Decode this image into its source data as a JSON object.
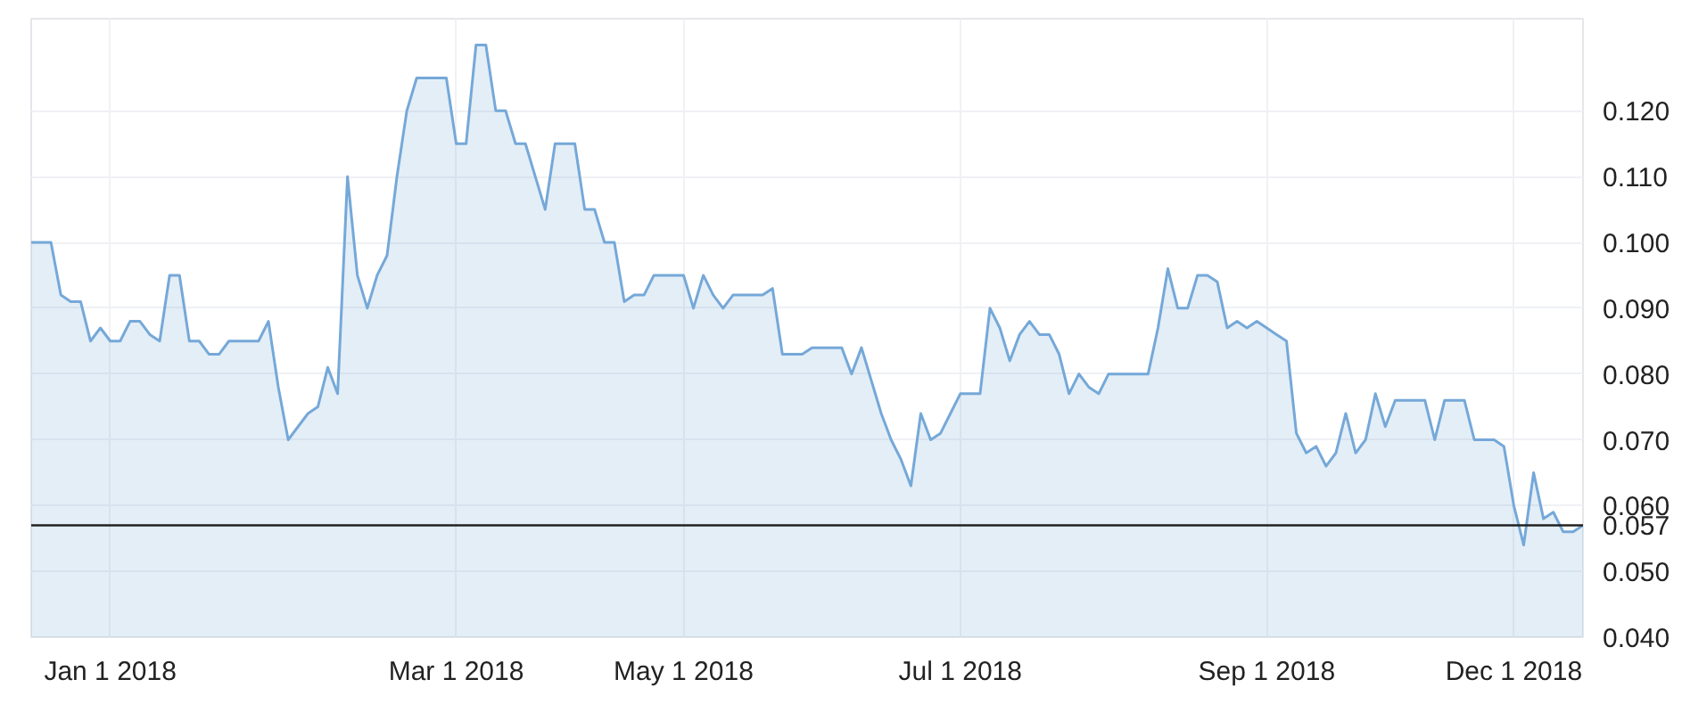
{
  "chart_data": {
    "type": "area",
    "categories": [
      null,
      null,
      null,
      null,
      null,
      null,
      null,
      null,
      "Jan 1 2018",
      null,
      null,
      null,
      null,
      null,
      null,
      null,
      null,
      null,
      null,
      null,
      null,
      null,
      null,
      null,
      null,
      null,
      null,
      null,
      null,
      null,
      null,
      null,
      null,
      null,
      null,
      null,
      null,
      null,
      null,
      null,
      null,
      null,
      null,
      "Mar 1 2018",
      null,
      null,
      null,
      null,
      null,
      null,
      null,
      null,
      null,
      null,
      null,
      null,
      null,
      null,
      null,
      null,
      null,
      null,
      null,
      null,
      null,
      null,
      "May 1 2018",
      null,
      null,
      null,
      null,
      null,
      null,
      null,
      null,
      null,
      null,
      null,
      null,
      null,
      null,
      null,
      null,
      null,
      null,
      null,
      null,
      null,
      null,
      null,
      null,
      null,
      null,
      null,
      "Jul 1 2018",
      null,
      null,
      null,
      null,
      null,
      null,
      null,
      null,
      null,
      null,
      null,
      null,
      null,
      null,
      null,
      null,
      null,
      null,
      null,
      null,
      null,
      null,
      null,
      null,
      null,
      null,
      null,
      null,
      null,
      null,
      "Sep 1 2018",
      null,
      null,
      null,
      null,
      null,
      null,
      null,
      null,
      null,
      null,
      null,
      null,
      null,
      null,
      null,
      null,
      null,
      null,
      null,
      null,
      null,
      null,
      null,
      null,
      "Dec 1 2018",
      null,
      null,
      null,
      null,
      null,
      null,
      null
    ],
    "series": [
      {
        "color": "#75a8d8",
        "values": [
          0.1,
          0.1,
          0.1,
          0.092,
          0.091,
          0.091,
          0.085,
          0.087,
          0.085,
          0.085,
          0.088,
          0.088,
          0.086,
          0.085,
          0.095,
          0.095,
          0.085,
          0.085,
          0.083,
          0.083,
          0.085,
          0.085,
          0.085,
          0.085,
          0.088,
          0.078,
          0.07,
          0.072,
          0.074,
          0.075,
          0.081,
          0.077,
          0.11,
          0.095,
          0.09,
          0.095,
          0.098,
          0.11,
          0.12,
          0.125,
          0.125,
          0.125,
          0.125,
          0.115,
          0.115,
          0.13,
          0.13,
          0.12,
          0.12,
          0.115,
          0.115,
          0.11,
          0.105,
          0.115,
          0.115,
          0.115,
          0.105,
          0.105,
          0.1,
          0.1,
          0.091,
          0.092,
          0.092,
          0.095,
          0.095,
          0.095,
          0.095,
          0.09,
          0.095,
          0.092,
          0.09,
          0.092,
          0.092,
          0.092,
          0.092,
          0.093,
          0.083,
          0.083,
          0.083,
          0.084,
          0.084,
          0.084,
          0.084,
          0.08,
          0.084,
          0.079,
          0.074,
          0.07,
          0.067,
          0.063,
          0.074,
          0.07,
          0.071,
          0.074,
          0.077,
          0.077,
          0.077,
          0.09,
          0.087,
          0.082,
          0.086,
          0.088,
          0.086,
          0.086,
          0.083,
          0.077,
          0.08,
          0.078,
          0.077,
          0.08,
          0.08,
          0.08,
          0.08,
          0.08,
          0.087,
          0.096,
          0.09,
          0.09,
          0.095,
          0.095,
          0.094,
          0.087,
          0.088,
          0.087,
          0.088,
          0.087,
          0.086,
          0.085,
          0.071,
          0.068,
          0.069,
          0.066,
          0.068,
          0.074,
          0.068,
          0.07,
          0.077,
          0.072,
          0.076,
          0.076,
          0.076,
          0.076,
          0.07,
          0.076,
          0.076,
          0.076,
          0.07,
          0.07,
          0.07,
          0.069,
          0.06,
          0.054,
          0.065,
          0.058,
          0.059,
          0.056,
          0.056,
          0.057
        ]
      }
    ],
    "ylim": [
      0.04,
      0.134
    ],
    "yticks": [
      {
        "value": 0.04,
        "label": "0.040"
      },
      {
        "value": 0.05,
        "label": "0.050"
      },
      {
        "value": 0.06,
        "label": "0.060"
      },
      {
        "value": 0.07,
        "label": "0.070"
      },
      {
        "value": 0.08,
        "label": "0.080"
      },
      {
        "value": 0.09,
        "label": "0.090"
      },
      {
        "value": 0.1,
        "label": "0.100"
      },
      {
        "value": 0.11,
        "label": "0.110"
      },
      {
        "value": 0.12,
        "label": "0.120"
      }
    ],
    "ref_lines": [
      {
        "axis": "y",
        "value": 0.057,
        "label": "0.057",
        "color": "#222222"
      }
    ],
    "grid": true
  }
}
